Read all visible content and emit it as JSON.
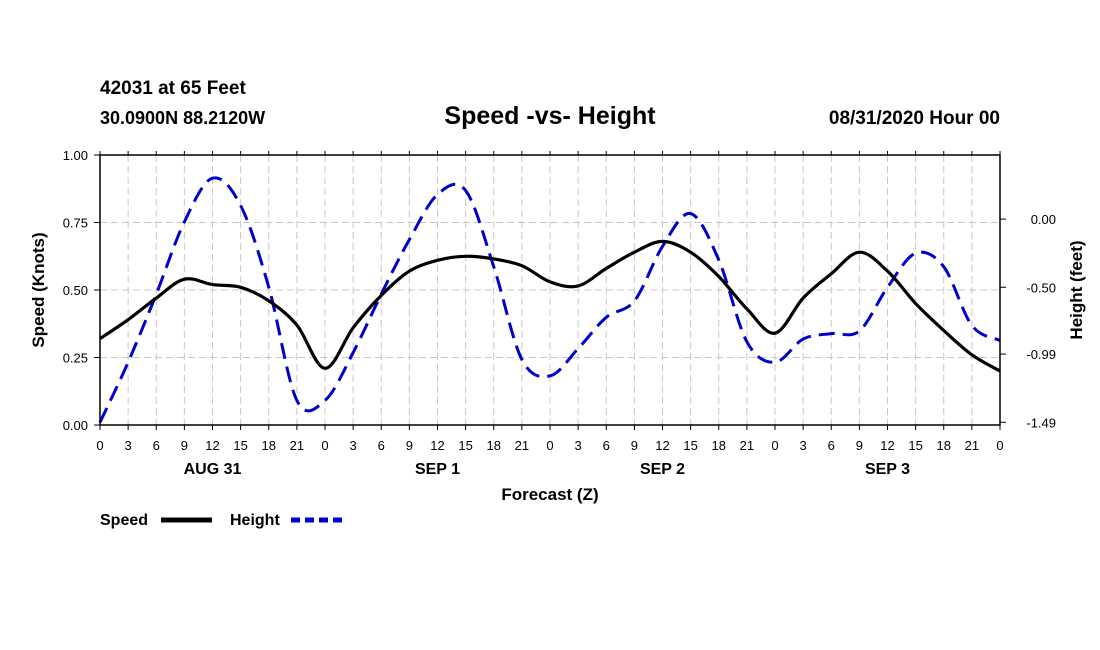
{
  "header": {
    "station": "42031 at 65 Feet",
    "location": "30.0900N 88.2120W",
    "title": "Speed -vs- Height",
    "datetime": "08/31/2020 Hour 00"
  },
  "chart_data": {
    "type": "line",
    "title": "Speed -vs- Height",
    "xlabel": "Forecast (Z)",
    "ylabel_left": "Speed (Knots)",
    "ylabel_right": "Height (feet)",
    "xlim": [
      0,
      96
    ],
    "ylim_left": [
      0,
      1.0
    ],
    "ylim_right": [
      -1.51,
      0.47
    ],
    "grid": true,
    "left_ticks": [
      "0.00",
      "0.25",
      "0.50",
      "0.75",
      "1.00"
    ],
    "right_ticks": [
      "0.00",
      "-0.50",
      "-0.99",
      "-1.49"
    ],
    "x_tick_labels": [
      "0",
      "3",
      "6",
      "9",
      "12",
      "15",
      "18",
      "21",
      "0",
      "3",
      "6",
      "9",
      "12",
      "15",
      "18",
      "21",
      "0",
      "3",
      "6",
      "9",
      "12",
      "15",
      "18",
      "21",
      "0",
      "3",
      "6",
      "9",
      "12",
      "15",
      "18",
      "21",
      "0"
    ],
    "day_labels": [
      "AUG 31",
      "SEP 1",
      "SEP 2",
      "SEP 3"
    ],
    "legend": [
      {
        "name": "Speed",
        "color": "#000000",
        "style": "solid"
      },
      {
        "name": "Height",
        "color": "#0000cc",
        "style": "dashed"
      }
    ],
    "series": [
      {
        "name": "Speed",
        "axis": "left",
        "color": "#000000",
        "x": [
          0,
          3,
          6,
          9,
          12,
          15,
          18,
          21,
          24,
          27,
          30,
          33,
          36,
          39,
          42,
          45,
          48,
          51,
          54,
          57,
          60,
          63,
          66,
          69,
          72,
          75,
          78,
          81,
          84,
          87,
          90,
          93,
          96
        ],
        "values": [
          0.32,
          0.39,
          0.47,
          0.54,
          0.52,
          0.51,
          0.46,
          0.37,
          0.21,
          0.36,
          0.48,
          0.57,
          0.61,
          0.625,
          0.615,
          0.59,
          0.53,
          0.515,
          0.58,
          0.64,
          0.68,
          0.64,
          0.55,
          0.43,
          0.34,
          0.47,
          0.56,
          0.64,
          0.57,
          0.45,
          0.35,
          0.26,
          0.2
        ]
      },
      {
        "name": "Height",
        "axis": "right",
        "color": "#0000cc",
        "x": [
          0,
          3,
          6,
          9,
          12,
          15,
          18,
          21,
          24,
          27,
          30,
          33,
          36,
          39,
          42,
          45,
          48,
          51,
          54,
          57,
          60,
          63,
          66,
          69,
          72,
          75,
          78,
          81,
          84,
          87,
          90,
          93,
          96
        ],
        "values": [
          -1.49,
          -1.05,
          -0.55,
          -0.02,
          0.3,
          0.1,
          -0.5,
          -1.33,
          -1.33,
          -0.98,
          -0.55,
          -0.15,
          0.18,
          0.21,
          -0.35,
          -1.03,
          -1.15,
          -0.95,
          -0.72,
          -0.6,
          -0.2,
          0.04,
          -0.3,
          -0.9,
          -1.05,
          -0.88,
          -0.84,
          -0.82,
          -0.5,
          -0.25,
          -0.35,
          -0.78,
          -0.89
        ]
      }
    ]
  }
}
